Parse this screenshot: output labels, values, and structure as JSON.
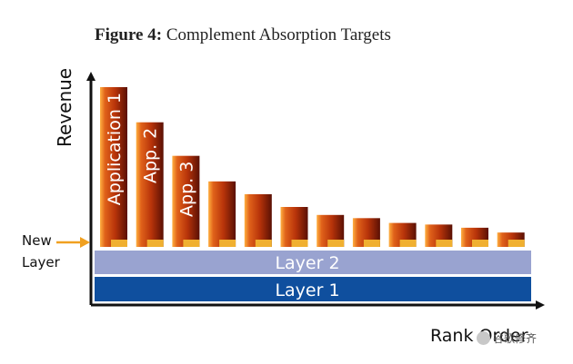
{
  "figure": {
    "label": "Figure 4:",
    "title": "Complement Absorption Targets"
  },
  "axes": {
    "y_label": "Revenue",
    "x_label": "Rank Order"
  },
  "layers": {
    "new_layer_line1": "New",
    "new_layer_line2": "Layer",
    "layer2": "Layer 2",
    "layer1": "Layer 1"
  },
  "bars": [
    {
      "label": "Application 1",
      "value": 1.0
    },
    {
      "label": "App. 2",
      "value": 0.78
    },
    {
      "label": "App. 3",
      "value": 0.57
    },
    {
      "label": "",
      "value": 0.41
    },
    {
      "label": "",
      "value": 0.33
    },
    {
      "label": "",
      "value": 0.25
    },
    {
      "label": "",
      "value": 0.2
    },
    {
      "label": "",
      "value": 0.18
    },
    {
      "label": "",
      "value": 0.15
    },
    {
      "label": "",
      "value": 0.14
    },
    {
      "label": "",
      "value": 0.12
    },
    {
      "label": "",
      "value": 0.09
    }
  ],
  "watermark": {
    "text": "谷歌修齐"
  },
  "colors": {
    "bar_dark": "#7a1a05",
    "bar_mid": "#c4420a",
    "bar_light": "#f08a2a",
    "gold": "#f0b030",
    "layer2": "#99a3d0",
    "layer1": "#0f4f9e",
    "axis": "#111111"
  }
}
